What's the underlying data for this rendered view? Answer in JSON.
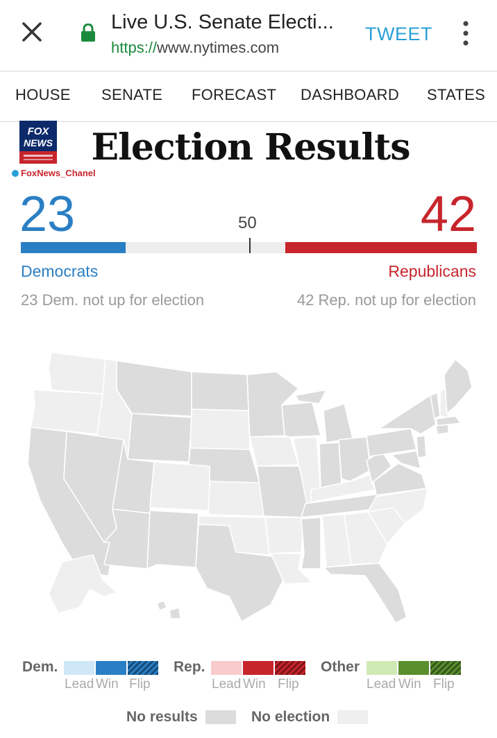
{
  "browser": {
    "page_title": "Live U.S. Senate Electi...",
    "url_scheme": "https://",
    "url_host": "www.nytimes.com",
    "tweet_label": "TWEET",
    "icons": {
      "close": "close-icon",
      "lock": "lock-icon",
      "menu": "more-vert-icon"
    }
  },
  "nav": {
    "items": [
      {
        "label": "HOUSE"
      },
      {
        "label": "SENATE"
      },
      {
        "label": "FORECAST"
      },
      {
        "label": "DASHBOARD"
      },
      {
        "label": "STATES"
      }
    ]
  },
  "watermark": {
    "logo_text": "FOX NEWS",
    "handle": "FoxNews_Chanel"
  },
  "headline": "Election Results",
  "score": {
    "dem_seats": "23",
    "rep_seats": "42",
    "majority": "50",
    "dem_label": "Democrats",
    "rep_label": "Republicans",
    "dem_note": "23 Dem. not up for election",
    "rep_note": "42 Rep. not up for election",
    "total_seats": 100
  },
  "colors": {
    "dem": "#2a7fc4",
    "dem_lead": "#cfe8f7",
    "rep": "#c7252c",
    "rep_lead": "#f9cccc",
    "other": "#5b8f2e",
    "other_lead": "#cfe9b4",
    "no_results": "#dcdcdc",
    "no_election": "#efefef"
  },
  "legend": {
    "groups": [
      {
        "title": "Dem.",
        "lead": "Lead",
        "win": "Win",
        "flip": "Flip"
      },
      {
        "title": "Rep.",
        "lead": "Lead",
        "win": "Win",
        "flip": "Flip"
      },
      {
        "title": "Other",
        "lead": "Lead",
        "win": "Win",
        "flip": "Flip"
      }
    ],
    "no_results": "No results",
    "no_election": "No election"
  }
}
